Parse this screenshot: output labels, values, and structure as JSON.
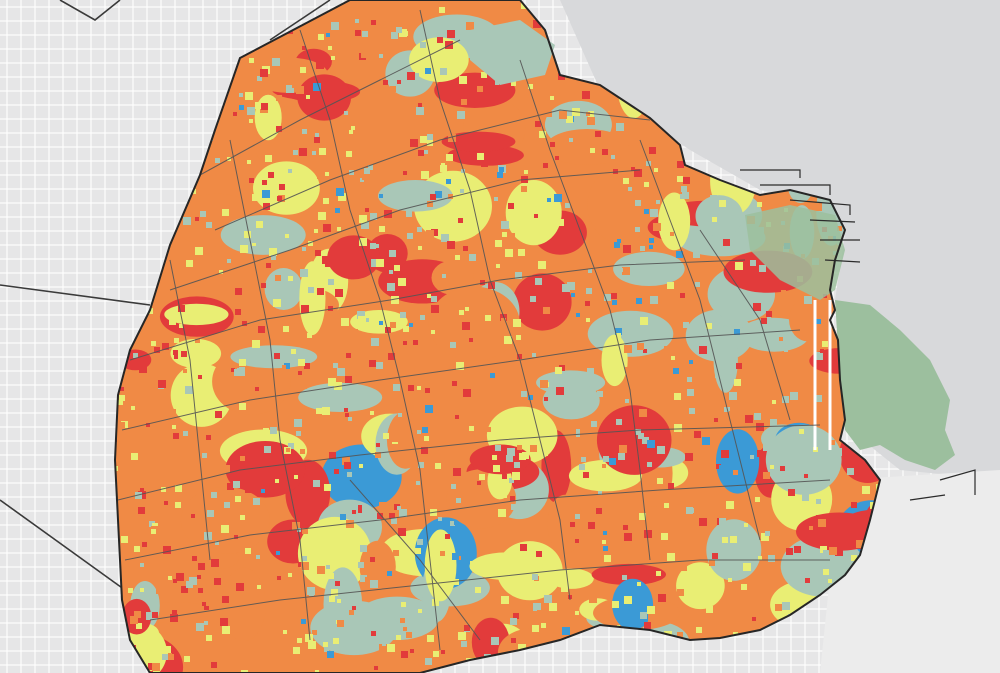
{
  "map": {
    "type": "choropleth-grid",
    "region": "city",
    "colors": {
      "water": "#d8d9db",
      "land": "#e7e7e8",
      "streets": "#ffffff",
      "boundary": "#2b2b2b",
      "districts": "#555555",
      "coastal_park": "#9cbf9e"
    },
    "categories": [
      {
        "key": "very-high",
        "color": "#e23b3b"
      },
      {
        "key": "high",
        "color": "#f08a45"
      },
      {
        "key": "medium",
        "color": "#e9ee74"
      },
      {
        "key": "low",
        "color": "#a9c7b7"
      },
      {
        "key": "very-low",
        "color": "#3b9ad6"
      }
    ]
  }
}
